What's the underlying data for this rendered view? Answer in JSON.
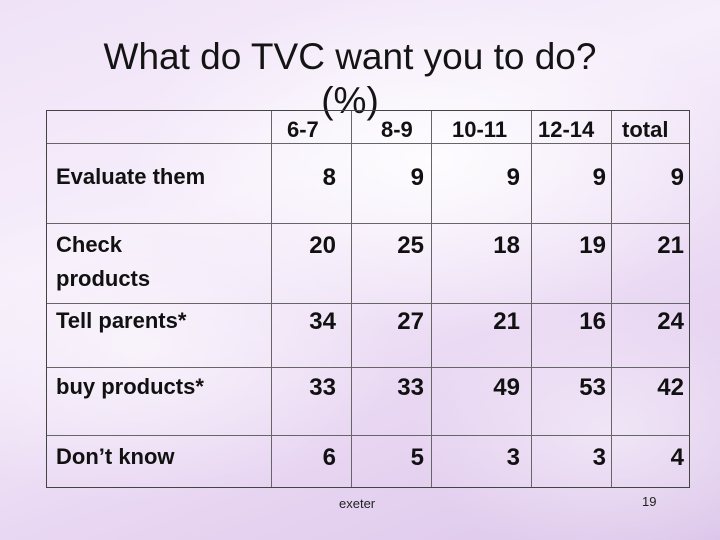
{
  "slide": {
    "title_line1": "What do TVC want you to do?",
    "title_line2": "(%)",
    "columns": [
      "6-7",
      "8-9",
      "10-11",
      "12-14",
      "total"
    ],
    "rows": [
      {
        "label_lines": [
          "Evaluate them"
        ],
        "values": [
          "8",
          "9",
          "9",
          "9",
          "9"
        ]
      },
      {
        "label_lines": [
          "Check",
          "products"
        ],
        "values": [
          "20",
          "25",
          "18",
          "19",
          "21"
        ]
      },
      {
        "label_lines": [
          "Tell parents*"
        ],
        "values": [
          "34",
          "27",
          "21",
          "16",
          "24"
        ]
      },
      {
        "label_lines": [
          "buy products*"
        ],
        "values": [
          "33",
          "33",
          "49",
          "53",
          "42"
        ]
      },
      {
        "label_lines": [
          "Don’t know"
        ],
        "values": [
          "6",
          "5",
          "3",
          "3",
          "4"
        ]
      }
    ],
    "footer_left": "exeter",
    "page_number": "19"
  }
}
